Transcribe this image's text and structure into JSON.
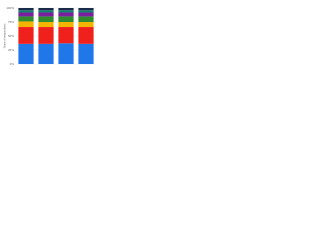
{
  "chart_data": {
    "type": "stacked_bar_percent",
    "y_label": "Share of respondents",
    "categories": [
      null,
      null,
      null,
      null
    ],
    "series": [
      {
        "color": "#1f77e8",
        "values": [
          36,
          36,
          37,
          36
        ]
      },
      {
        "color": "#f0201c",
        "values": [
          30,
          30,
          29,
          30
        ]
      },
      {
        "color": "#f5b400",
        "values": [
          10,
          9,
          9,
          9
        ]
      },
      {
        "color": "#2e8b2e",
        "values": [
          9,
          10,
          10,
          10
        ]
      },
      {
        "color": "#7a1fa0",
        "values": [
          7,
          7,
          7,
          7
        ]
      },
      {
        "color": "#14806e",
        "values": [
          4,
          4,
          4,
          4
        ]
      },
      {
        "color": "#1a2a4a",
        "values": [
          4,
          4,
          4,
          4
        ]
      }
    ],
    "ylim": [
      0,
      100
    ],
    "yticks": [
      {
        "value": 0,
        "label": "0%"
      },
      {
        "value": 25,
        "label": "25%"
      },
      {
        "value": 50,
        "label": "50%"
      },
      {
        "value": 75,
        "label": "75%"
      },
      {
        "value": 100,
        "label": "100%"
      }
    ],
    "grid": true
  }
}
